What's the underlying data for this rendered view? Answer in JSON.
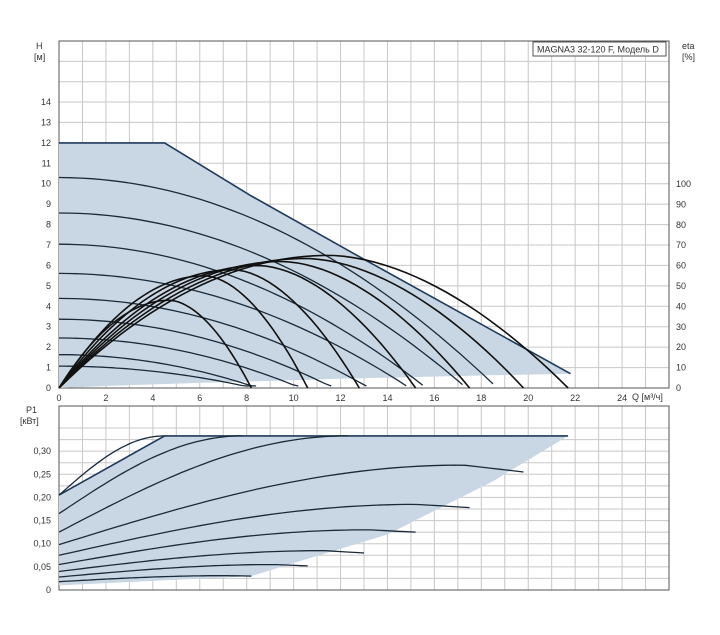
{
  "title": "MAGNA3 32-120 F, Модель D",
  "colors": {
    "envelope": "#c9d7e4",
    "envelope_edge": "#1f3a5c",
    "curve": "#1a2a3a"
  },
  "chart_data": [
    {
      "type": "line",
      "name": "head",
      "ylabel": "H",
      "yunit": "[м]",
      "y2label": "eta",
      "y2unit": "[%]",
      "xlabel": "Q [м³/ч]",
      "xlim": [
        0,
        26
      ],
      "ylim": [
        0,
        14
      ],
      "y2lim": [
        0,
        100
      ],
      "xticks": [
        "0",
        "2",
        "4",
        "6",
        "8",
        "10",
        "12",
        "14",
        "16",
        "18",
        "20",
        "22",
        "24"
      ],
      "yticks": [
        "0",
        "1",
        "2",
        "3",
        "4",
        "5",
        "6",
        "7",
        "8",
        "9",
        "10",
        "11",
        "12",
        "13",
        "14"
      ],
      "y2ticks": [
        "0",
        "10",
        "20",
        "30",
        "40",
        "50",
        "60",
        "70",
        "80",
        "90",
        "100"
      ],
      "envelope": [
        [
          0,
          12
        ],
        [
          4.5,
          12
        ],
        [
          8.2,
          9.4
        ],
        [
          13,
          6.3
        ],
        [
          21.8,
          0.7
        ],
        [
          17.5,
          0.6
        ],
        [
          12,
          0.45
        ],
        [
          6,
          0.25
        ],
        [
          2,
          0.1
        ],
        [
          0,
          0
        ]
      ],
      "hq_curves": [
        {
          "h0": 10.1,
          "qmax": 18.5
        },
        {
          "h0": 8.4,
          "qmax": 17.2
        },
        {
          "h0": 6.9,
          "qmax": 15.5
        },
        {
          "h0": 5.5,
          "qmax": 14.8
        },
        {
          "h0": 4.3,
          "qmax": 13.1
        },
        {
          "h0": 3.3,
          "qmax": 11.6
        },
        {
          "h0": 2.4,
          "qmax": 10.2
        },
        {
          "h0": 1.6,
          "qmax": 8.4
        },
        {
          "h0": 1.05,
          "qmax": 8.2
        }
      ],
      "eta_curves": [
        {
          "qmax": 21.7,
          "peak_q": 11.5,
          "peak": 65
        },
        {
          "qmax": 19.8,
          "peak_q": 10.5,
          "peak": 63.5
        },
        {
          "qmax": 17.5,
          "peak_q": 9.5,
          "peak": 62
        },
        {
          "qmax": 15.2,
          "peak_q": 8.5,
          "peak": 60
        },
        {
          "qmax": 12.8,
          "peak_q": 7.4,
          "peak": 58
        },
        {
          "qmax": 10.6,
          "peak_q": 6.2,
          "peak": 55
        },
        {
          "qmax": 8.2,
          "peak_q": 4.7,
          "peak": 43
        }
      ]
    },
    {
      "type": "line",
      "name": "power",
      "ylabel": "P1",
      "yunit": "[кВт]",
      "xlim": [
        0,
        26
      ],
      "ylim": [
        0,
        0.35
      ],
      "yticks": [
        "0",
        "0,05",
        "0,10",
        "0,15",
        "0,20",
        "0,25",
        "0,30"
      ],
      "envelope": [
        [
          0,
          0.205
        ],
        [
          4.5,
          0.333
        ],
        [
          21.7,
          0.333
        ],
        [
          18.5,
          0.235
        ],
        [
          14,
          0.12
        ],
        [
          8.2,
          0.03
        ],
        [
          0,
          0.01
        ]
      ],
      "p_curves": [
        {
          "p0": 0.205,
          "pend": 0.333,
          "qend": 4.5
        },
        {
          "p0": 0.165,
          "pend": 0.333,
          "qend": 7.8
        },
        {
          "p0": 0.125,
          "pend": 0.333,
          "qend": 12.3
        },
        {
          "p0": 0.098,
          "pend": 0.255,
          "qend": 19.8,
          "peak": 0.27
        },
        {
          "p0": 0.075,
          "pend": 0.178,
          "qend": 17.5,
          "peak": 0.185
        },
        {
          "p0": 0.055,
          "pend": 0.125,
          "qend": 15.2,
          "peak": 0.13
        },
        {
          "p0": 0.04,
          "pend": 0.08,
          "qend": 13.0,
          "peak": 0.085
        },
        {
          "p0": 0.028,
          "pend": 0.052,
          "qend": 10.6,
          "peak": 0.055
        },
        {
          "p0": 0.018,
          "pend": 0.03,
          "qend": 8.2,
          "peak": 0.031
        }
      ]
    }
  ]
}
